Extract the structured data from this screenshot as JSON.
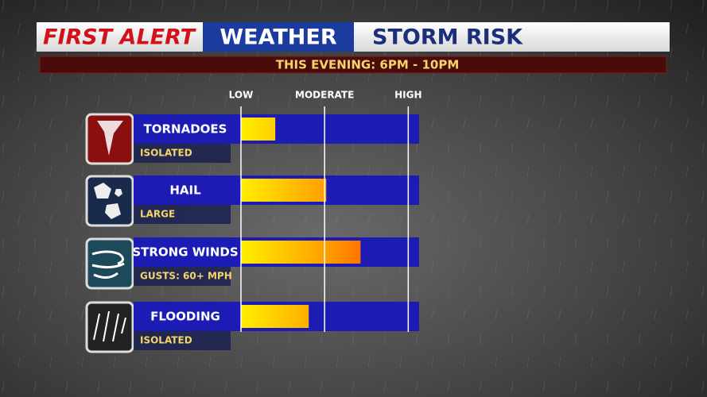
{
  "chart_data": {
    "type": "bar",
    "orientation": "horizontal",
    "title_parts": [
      "FIRST ALERT",
      "WEATHER",
      "STORM RISK"
    ],
    "subtitle": "THIS EVENING: 6PM - 10PM",
    "categories": [
      "TORNADOES",
      "HAIL",
      "STRONG WINDS",
      "FLOODING"
    ],
    "details": [
      "ISOLATED",
      "LARGE",
      "GUSTS: 60+ MPH",
      "ISOLATED"
    ],
    "values": [
      0.41,
      1.02,
      1.43,
      0.81
    ],
    "xlim": [
      0,
      2.13
    ],
    "xticks": [
      {
        "value": 0,
        "label": "LOW"
      },
      {
        "value": 1,
        "label": "MODERATE"
      },
      {
        "value": 2,
        "label": "HIGH"
      }
    ],
    "colors": {
      "track": "#1c1cb4",
      "bar_low": "#ffee00",
      "bar_high": "#ff3a00"
    }
  }
}
